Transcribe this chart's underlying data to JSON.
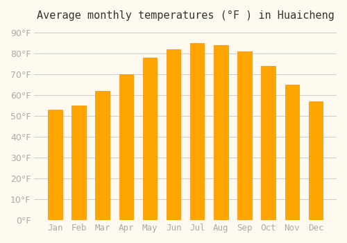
{
  "title": "Average monthly temperatures (°F ) in Huaicheng",
  "months": [
    "Jan",
    "Feb",
    "Mar",
    "Apr",
    "May",
    "Jun",
    "Jul",
    "Aug",
    "Sep",
    "Oct",
    "Nov",
    "Dec"
  ],
  "values": [
    53,
    55,
    62,
    70,
    78,
    82,
    85,
    84,
    81,
    74,
    65,
    57
  ],
  "bar_color": "#FFA500",
  "bar_edge_color": "#FF8C00",
  "background_color": "#FFFAF0",
  "grid_color": "#CCCCCC",
  "yticks": [
    0,
    10,
    20,
    30,
    40,
    50,
    60,
    70,
    80,
    90
  ],
  "ylim": [
    0,
    92
  ],
  "title_fontsize": 11,
  "tick_fontsize": 9,
  "tick_color": "#AAAAAA",
  "axis_label_color": "#AAAAAA"
}
